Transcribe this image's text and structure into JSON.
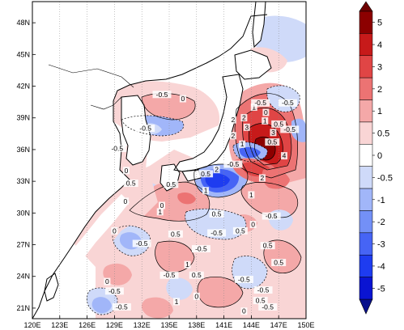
{
  "map": {
    "lon_range": [
      120,
      150
    ],
    "lat_range": [
      20,
      50
    ],
    "lon_ticks": [
      "120E",
      "123E",
      "126E",
      "129E",
      "132E",
      "135E",
      "138E",
      "141E",
      "144E",
      "147E",
      "150E"
    ],
    "lat_ticks": [
      "21N",
      "24N",
      "27N",
      "30N",
      "33N",
      "36N",
      "39N",
      "42N",
      "45N",
      "48N"
    ],
    "grid": "dotted vertical meridians",
    "field_colormap": "blue-white-red diverging"
  },
  "contour_labels": [
    {
      "text": "-0.5",
      "lon": 134.2,
      "lat": 41.1
    },
    {
      "text": "0",
      "lon": 136.5,
      "lat": 40.7
    },
    {
      "text": "-0.5",
      "lon": 129.3,
      "lat": 36.0
    },
    {
      "text": "-0.5",
      "lon": 132.4,
      "lat": 37.9
    },
    {
      "text": "0",
      "lon": 130.3,
      "lat": 33.9
    },
    {
      "text": "0.5",
      "lon": 130.8,
      "lat": 32.7
    },
    {
      "text": "0",
      "lon": 130.2,
      "lat": 31.0
    },
    {
      "text": "0.5",
      "lon": 135.2,
      "lat": 32.6
    },
    {
      "text": "1",
      "lon": 139.0,
      "lat": 32.0
    },
    {
      "text": "0.5",
      "lon": 139.0,
      "lat": 33.6
    },
    {
      "text": "-0.5",
      "lon": 142.0,
      "lat": 34.5
    },
    {
      "text": "1",
      "lon": 144.0,
      "lat": 31.6
    },
    {
      "text": "2",
      "lon": 140.2,
      "lat": 34.0
    },
    {
      "text": "2",
      "lon": 145.2,
      "lat": 33.2
    },
    {
      "text": "2",
      "lon": 142.0,
      "lat": 37.2
    },
    {
      "text": "1",
      "lon": 143.0,
      "lat": 36.4
    },
    {
      "text": "4",
      "lon": 147.6,
      "lat": 35.3
    },
    {
      "text": "3",
      "lon": 146.4,
      "lat": 37.5
    },
    {
      "text": "2",
      "lon": 142.0,
      "lat": 38.7
    },
    {
      "text": "2",
      "lon": 143.2,
      "lat": 38.9
    },
    {
      "text": "3",
      "lon": 143.5,
      "lat": 38.0
    },
    {
      "text": "1",
      "lon": 145.5,
      "lat": 38.6
    },
    {
      "text": "0.5",
      "lon": 146.3,
      "lat": 36.6
    },
    {
      "text": "1",
      "lon": 144.3,
      "lat": 39.9
    },
    {
      "text": "-0.5",
      "lon": 145.0,
      "lat": 40.3
    },
    {
      "text": "0",
      "lon": 145.6,
      "lat": 39.4
    },
    {
      "text": "-0.5",
      "lon": 148.2,
      "lat": 37.8
    },
    {
      "text": "-0.5",
      "lon": 148.0,
      "lat": 40.3
    },
    {
      "text": "0.5",
      "lon": 147.0,
      "lat": 38.3
    },
    {
      "text": "0",
      "lon": 134.2,
      "lat": 30.6
    },
    {
      "text": "1",
      "lon": 134.0,
      "lat": 30.0
    },
    {
      "text": "0.5",
      "lon": 135.7,
      "lat": 27.9
    },
    {
      "text": "-0.5",
      "lon": 132.0,
      "lat": 27.0
    },
    {
      "text": "-0.5",
      "lon": 138.5,
      "lat": 26.5
    },
    {
      "text": "-0.5",
      "lon": 140.2,
      "lat": 28.0
    },
    {
      "text": "0.5",
      "lon": 140.2,
      "lat": 29.8
    },
    {
      "text": "0",
      "lon": 144.2,
      "lat": 28.8
    },
    {
      "text": "0.5",
      "lon": 142.8,
      "lat": 28.2
    },
    {
      "text": "-0.5",
      "lon": 146.2,
      "lat": 29.6
    },
    {
      "text": "0.5",
      "lon": 145.8,
      "lat": 26.8
    },
    {
      "text": "0.5",
      "lon": 147.0,
      "lat": 25.2
    },
    {
      "text": "-0.5",
      "lon": 145.3,
      "lat": 22.6
    },
    {
      "text": "-0.5",
      "lon": 143.2,
      "lat": 23.6
    },
    {
      "text": "-0.5",
      "lon": 135.0,
      "lat": 24.0
    },
    {
      "text": "1",
      "lon": 137.0,
      "lat": 25.0
    },
    {
      "text": "0.5",
      "lon": 138.0,
      "lat": 24.0
    },
    {
      "text": "-0.5",
      "lon": 129.0,
      "lat": 22.5
    },
    {
      "text": "-0.5",
      "lon": 129.8,
      "lat": 21.0
    },
    {
      "text": "1",
      "lon": 135.8,
      "lat": 21.5
    },
    {
      "text": "0.5",
      "lon": 145.0,
      "lat": 21.6
    },
    {
      "text": "-0.5",
      "lon": 145.8,
      "lat": 21.0
    },
    {
      "text": "0",
      "lon": 143.2,
      "lat": 20.6
    },
    {
      "text": "0",
      "lon": 128.2,
      "lat": 23.4
    },
    {
      "text": "0",
      "lon": 138.0,
      "lat": 22.0
    },
    {
      "text": "0",
      "lon": 129.0,
      "lat": 28.2
    }
  ],
  "colorbar": {
    "orientation": "vertical",
    "labels": [
      "5",
      "4",
      "3",
      "2",
      "1",
      "0.5",
      "0",
      "-0.5",
      "-1",
      "-2",
      "-3",
      "-4",
      "-5"
    ],
    "levels": [
      -5,
      -4,
      -3,
      -2,
      -1,
      -0.5,
      0,
      0.5,
      1,
      2,
      3,
      4,
      5
    ],
    "colors": [
      "#0a14d2",
      "#1e3cf0",
      "#4664f5",
      "#7390f7",
      "#a1b6f9",
      "#cfdaf9",
      "#ffffff",
      "#f9d5d5",
      "#f4a8a8",
      "#ec7373",
      "#e04545",
      "#c71a1a",
      "#8c0000"
    ],
    "under_color": "#08108c",
    "over_color": "#6e0000"
  }
}
